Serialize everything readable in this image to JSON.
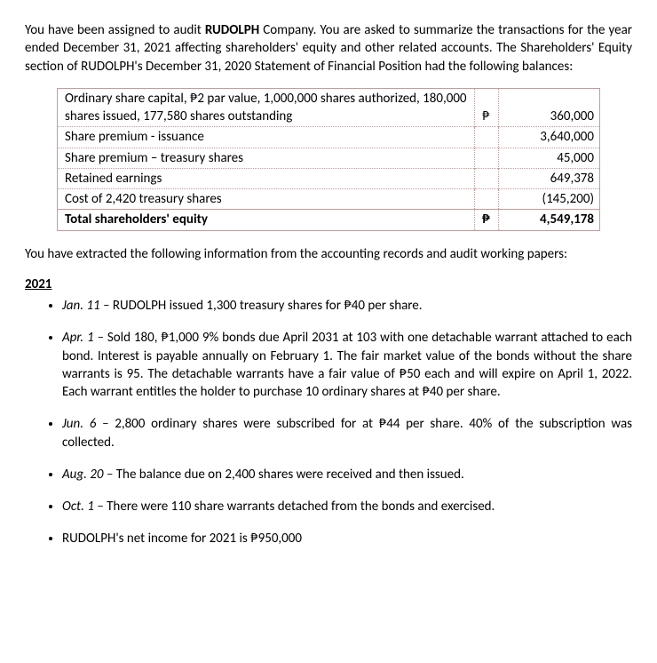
{
  "intro": {
    "part1": "You have been assigned to audit ",
    "company": "RUDOLPH",
    "part2": " Company.  You are asked to summarize the transactions for the year ended December 31, 2021 affecting shareholders' equity and other related accounts.  The Shareholders' Equity section of RUDOLPH's December 31, 2020 Statement of Financial Position had the following balances:"
  },
  "table": {
    "currency_symbol": "₱",
    "rows": [
      {
        "desc": "Ordinary share capital, ₱2 par value, 1,000,000 shares authorized, 180,000 shares issued, 177,580 shares outstanding",
        "cur": "₱",
        "amt": "360,000"
      },
      {
        "desc": "Share premium - issuance",
        "cur": "",
        "amt": "3,640,000"
      },
      {
        "desc": "Share premium – treasury shares",
        "cur": "",
        "amt": "45,000"
      },
      {
        "desc": "Retained earnings",
        "cur": "",
        "amt": "649,378"
      },
      {
        "desc": "Cost of 2,420 treasury shares",
        "cur": "",
        "amt": "(145,200)"
      },
      {
        "desc": "Total shareholders' equity",
        "cur": "₱",
        "amt": "4,549,178",
        "bold": true
      }
    ]
  },
  "between": "You have extracted the following information from the accounting records and audit working papers:",
  "year_label": "2021",
  "events": [
    {
      "lead": "Jan. 11 – ",
      "text": "RUDOLPH issued 1,300 treasury shares for ₱40 per share."
    },
    {
      "lead": "Apr. 1 – ",
      "text": "Sold 180, ₱1,000 9% bonds due April 2031 at 103 with one detachable warrant attached to each bond. Interest is payable annually on February 1.  The fair market value of the bonds without the share warrants is 95.  The detachable warrants have a fair value of ₱50 each and will expire on April 1, 2022.  Each warrant entitles the holder to purchase 10 ordinary shares at ₱40 per share."
    },
    {
      "lead": "Jun. 6 – ",
      "text": "2,800 ordinary shares were subscribed for at ₱44 per share.  40% of the subscription was collected."
    },
    {
      "lead": "Aug. 20 – ",
      "text": "The balance due on 2,400 shares were received and then issued."
    },
    {
      "lead": "Oct. 1 – ",
      "text": "There were 110 share warrants detached from the bonds and exercised."
    },
    {
      "lead": "",
      "text": "RUDOLPH's net income for 2021 is ₱950,000"
    }
  ]
}
